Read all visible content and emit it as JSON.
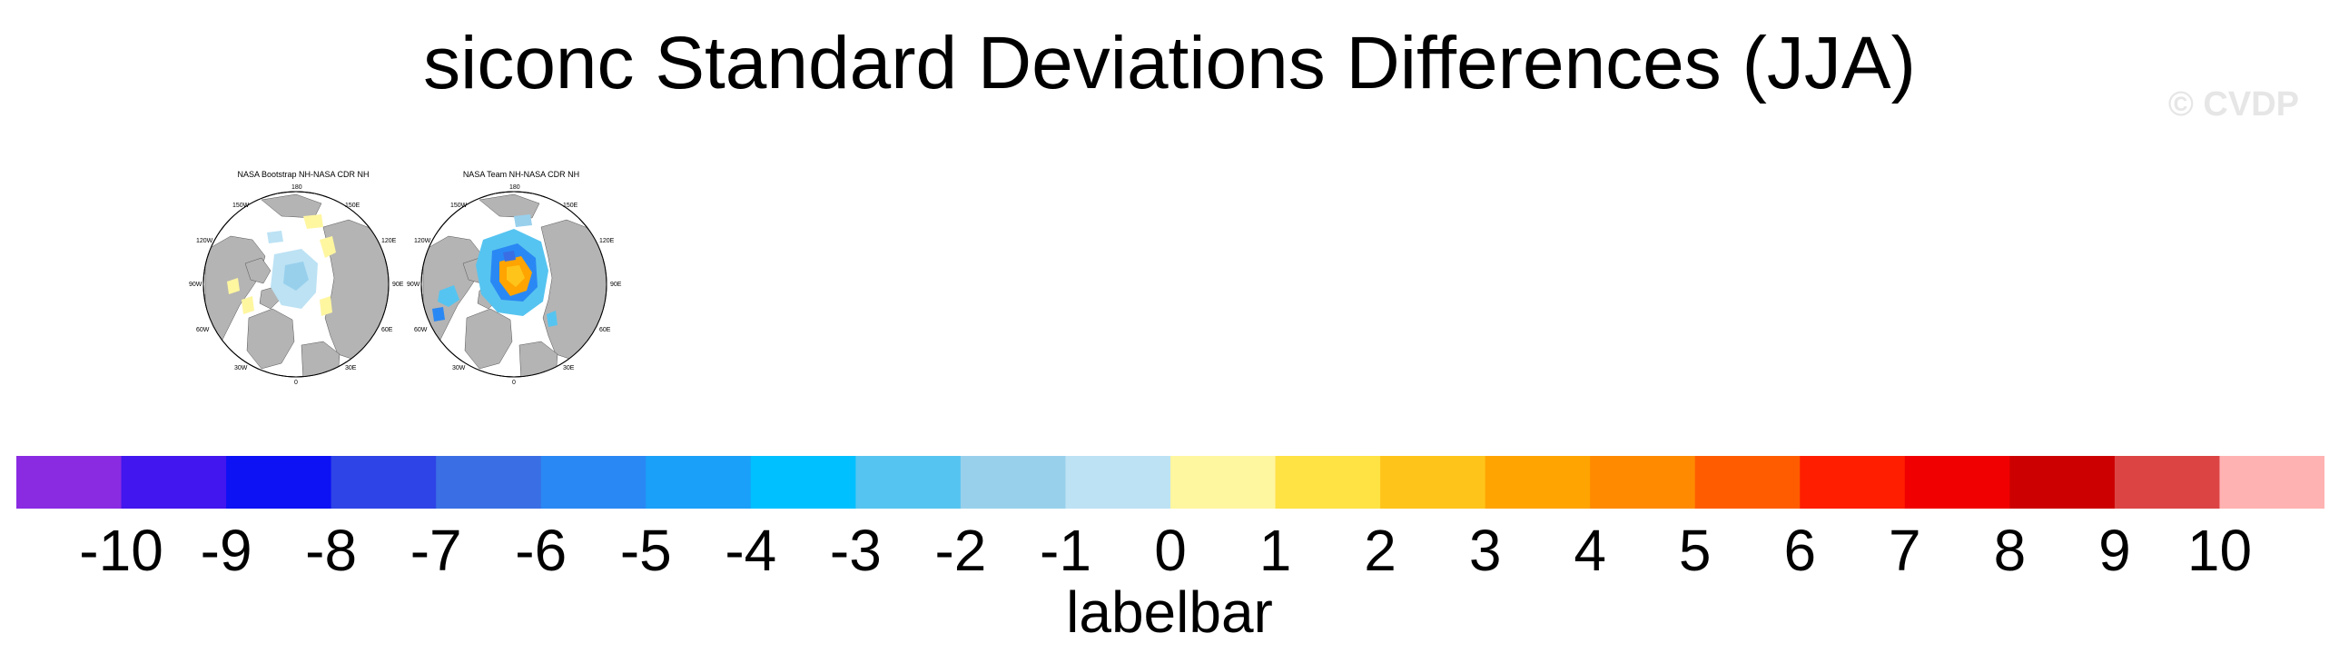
{
  "title": "siconc Standard Deviations Differences (JJA)",
  "watermark": "© CVDP",
  "panels": [
    {
      "title": "NASA Bootstrap NH-NASA CDR NH",
      "lon_labels": {
        "top": "180",
        "tr": "150E",
        "rt": "120E",
        "right": "90E",
        "rb": "60E",
        "br": "30E",
        "bottom": "0",
        "bl": "30W",
        "lb": "60W",
        "left": "90W",
        "lt": "120W",
        "tl": "150W"
      }
    },
    {
      "title": "NASA Team NH-NASA CDR NH",
      "lon_labels": {
        "top": "180",
        "tr": "150E",
        "rt": "120E",
        "right": "90E",
        "rb": "60E",
        "br": "30E",
        "bottom": "0",
        "bl": "30W",
        "lb": "60W",
        "left": "90W",
        "lt": "120W",
        "tl": "150W"
      }
    }
  ],
  "colorbar": {
    "title": "labelbar",
    "ticks": [
      "-10",
      "-9",
      "-8",
      "-7",
      "-6",
      "-5",
      "-4",
      "-3",
      "-2",
      "-1",
      "0",
      "1",
      "2",
      "3",
      "4",
      "5",
      "6",
      "7",
      "8",
      "9",
      "10"
    ],
    "colors": [
      "#8a2be2",
      "#4216ee",
      "#0c12f4",
      "#2e44e6",
      "#3a6ee4",
      "#2a88f4",
      "#1aa0f8",
      "#00c0ff",
      "#56c4f0",
      "#98d0ec",
      "#bce2f4",
      "#fff6a0",
      "#ffe244",
      "#ffc41a",
      "#ffa400",
      "#ff8a00",
      "#ff5c00",
      "#ff1e00",
      "#f00000",
      "#cc0000",
      "#dc4444",
      "#ffb2b2"
    ]
  },
  "colors": {
    "land": "#b4b4b4",
    "ocean": "#ffffff",
    "coast": "#505050"
  }
}
